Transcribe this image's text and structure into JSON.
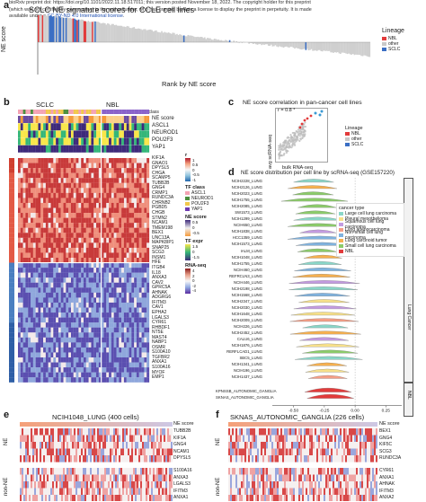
{
  "banner": {
    "line1": "bioRxiv preprint doi: https://doi.org/10.1101/2022.11.18.517011; this version posted November 18, 2022. The copyright holder for this preprint",
    "line2": "(which was not certified by peer review) is the author/funder, who has granted bioRxiv a license to display the preprint in perpetuity. It is made",
    "line3_pre": "available under a",
    "line3_link": "CC-BY-ND 4.0 International license",
    "line3_post": "."
  },
  "panel_a": {
    "letter": "a",
    "title": "SCLC NE signature scores for CCLE cell lines",
    "ylabel": "NE score",
    "xlabel": "Rank by NE score",
    "legend_title": "Lineage",
    "legend": [
      {
        "label": "NBL",
        "color": "#e23b3b"
      },
      {
        "label": "other",
        "color": "#c9c9c9"
      },
      {
        "label": "SCLC",
        "color": "#3b6fc4"
      }
    ]
  },
  "panel_b": {
    "letter": "b",
    "groups": [
      "SCLC",
      "NBL"
    ],
    "annotation_title": "TF class",
    "annotation_rows": [
      "NE score",
      "ASCL1",
      "NEUROD1",
      "POU2F3",
      "YAP1"
    ],
    "genes": [
      "KIF1A",
      "GNAO1",
      "DPYSL5",
      "CHGA",
      "SCAMP5",
      "TUBB2B",
      "GNG4",
      "CRMP1",
      "RUNDC3A",
      "CHRNB2",
      "PGBD5",
      "CHGB",
      "STMN2",
      "NCAM1",
      "TMEM198",
      "BEX1",
      "UNC13A",
      "MAPK8IP1",
      "SNAP25",
      "SCG3",
      "INSM1",
      "HFE",
      "ITGB4",
      "IL18",
      "ANXA3",
      "CAV2",
      "GPRC5A",
      "AHNAK",
      "ADGRG6",
      "IFITM3",
      "CAV1",
      "EPHA2",
      "LGALS3",
      "CYR61",
      "RHBDF1",
      "NT5E",
      "MAST4",
      "NABP1",
      "OSMR",
      "S100A10",
      "TGFBR2",
      "ANXA1",
      "S100A16",
      "MYOF",
      "EMP1"
    ],
    "legend_r_title": "r",
    "legend_r_ticks": [
      "1",
      "0.5",
      "0",
      "-0.5",
      "-1"
    ],
    "legend_tf_title": "TF class",
    "legend_tf": [
      {
        "label": "ASCL1",
        "color": "#f4a3b4"
      },
      {
        "label": "NEUROD1",
        "color": "#4d8f3f"
      },
      {
        "label": "POU2F3",
        "color": "#f2c84b"
      },
      {
        "label": "YAP1",
        "color": "#6e3ab0"
      }
    ],
    "legend_ne_title": "NE score",
    "legend_ne_ticks": [
      "0.5",
      "0",
      "-0.5"
    ],
    "legend_tfexpr_title": "TF expr",
    "legend_tfexpr_ticks": [
      "1.5",
      "0",
      "-1.5"
    ],
    "legend_rna_title": "RNA-seq",
    "legend_rna_ticks": [
      "4",
      "2",
      "0",
      "-2",
      "-4"
    ]
  },
  "panel_c": {
    "letter": "c",
    "title": "NE score correlation in pan-cancer cell lines",
    "ylabel": "avg scRNA-seq",
    "xlabel": "bulk RNA-seq",
    "annotation": "r = 0.8 *",
    "legend_title": "Lineage",
    "legend": [
      {
        "label": "NBL",
        "color": "#e23b3b"
      },
      {
        "label": "other",
        "color": "#c9c9c9"
      },
      {
        "label": "SCLC",
        "color": "#3b6fc4"
      }
    ]
  },
  "panel_d": {
    "letter": "d",
    "title": "NE score distribution per cell line by scRNA-seq (GSE157220)",
    "cell_lines": [
      "NCIH2228_LUNG",
      "NCIH2126_LUNG",
      "NCIH2023_LUNG",
      "NCIH1755_LUNG",
      "NCIH2085_LUNG",
      "SW1573_LUNG",
      "NCIH1299_LUNG",
      "NCIH650_LUNG",
      "NCIH1838_LUNG",
      "HCC1359_LUNG",
      "NCIH1573_LUNG",
      "IALM_LUNG",
      "NCIH1048_LUNG",
      "NCIH1755_LUNG",
      "NCIH460_LUNG",
      "REFRCLN3_LUNG",
      "NCIH446_LUNG",
      "NCIH2198_LUNG",
      "NCIH1568_LUNG",
      "NCIH2347_LUNG",
      "NCIH2030_LUNG",
      "NCIH1648_LUNG",
      "NCIH2009_LUNG",
      "NCIH226_LUNG",
      "NCIH2452_LUNG",
      "CALU6_LUNG",
      "NCIH1876_LUNG",
      "RERFLCAD1_LUNG",
      "SBC5_LUNG",
      "NCIH1341_LUNG",
      "NCIH196_LUNG",
      "NCIH1437_LUNG"
    ],
    "group_lung": "Lung Cancer",
    "extra_rows": [
      "KPNSSB_AUTONOMIC_GANGLIA",
      "SKNAS_AUTONOMIC_GANGLIA"
    ],
    "group_nbl": "NBL",
    "x_ticks": [
      "-0.50",
      "-0.25",
      "0.00",
      "0.25"
    ],
    "legend_title": "cancer type",
    "legend": [
      {
        "label": "Large cell lung carcinoma",
        "color": "#8ad6c8"
      },
      {
        "label": "Pleural mesothelioma",
        "color": "#f7e08a"
      },
      {
        "label": "Squamous cell lung carcinoma",
        "color": "#c39be0"
      },
      {
        "label": "Lung adenocarcinoma",
        "color": "#f59e86"
      },
      {
        "label": "Non-small cell lung carcinoma",
        "color": "#7fb2de"
      },
      {
        "label": "Lung carcinoid tumor",
        "color": "#f6b04f"
      },
      {
        "label": "Small cell lung carcinoma",
        "color": "#8ccb6a"
      },
      {
        "label": "NBL",
        "color": "#e23b3b"
      }
    ]
  },
  "panel_e": {
    "letter": "e",
    "title": "NCIH1048_LUNG (400 cells)",
    "ne_label": "NE",
    "non_ne_label": "non-NE",
    "score_label": "NE score",
    "ne_genes": [
      "TUBB2B",
      "KIF1A",
      "GNG4",
      "NCAM1",
      "DPYSL5"
    ],
    "non_ne_genes": [
      "S100A16",
      "ANXA3",
      "LGALS3",
      "IFITM3",
      "ANXA1"
    ]
  },
  "panel_f": {
    "letter": "f",
    "title": "SKNAS_AUTONOMIC_GANGLIA (226 cells)",
    "ne_label": "NE",
    "non_ne_label": "non-NE",
    "score_label": "NE score",
    "ne_genes": [
      "BEX1",
      "GNG4",
      "KIF5C",
      "SCG3",
      "RUNDC3A"
    ],
    "non_ne_genes": [
      "CYR61",
      "ANXA1",
      "AHNAK",
      "IFITM3",
      "ANXA2"
    ]
  }
}
